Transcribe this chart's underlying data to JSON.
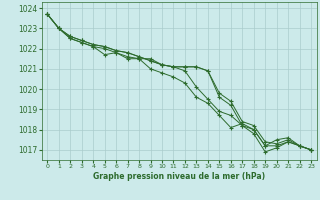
{
  "xlabel": "Graphe pression niveau de la mer (hPa)",
  "bg_color": "#cceaea",
  "grid_color": "#aacccc",
  "line_color": "#2d6b2d",
  "text_color": "#2d6b2d",
  "ylim": [
    1016.5,
    1024.3
  ],
  "xlim": [
    -0.5,
    23.5
  ],
  "yticks": [
    1017,
    1018,
    1019,
    1020,
    1021,
    1022,
    1023,
    1024
  ],
  "xticks": [
    0,
    1,
    2,
    3,
    4,
    5,
    6,
    7,
    8,
    9,
    10,
    11,
    12,
    13,
    14,
    15,
    16,
    17,
    18,
    19,
    20,
    21,
    22,
    23
  ],
  "series": [
    [
      1023.7,
      1023.0,
      1022.5,
      1022.3,
      1022.1,
      1021.7,
      1021.8,
      1021.6,
      1021.5,
      1021.5,
      1021.2,
      1021.1,
      1020.9,
      1020.1,
      1019.5,
      1018.9,
      1018.7,
      1018.2,
      1017.8,
      1016.9,
      1017.1,
      1017.4,
      1017.2,
      1017.0
    ],
    [
      1023.7,
      1023.0,
      1022.5,
      1022.3,
      1022.1,
      1022.0,
      1021.8,
      1021.5,
      1021.5,
      1021.0,
      1020.8,
      1020.6,
      1020.3,
      1019.6,
      1019.3,
      1018.7,
      1018.1,
      1018.3,
      1018.0,
      1017.2,
      1017.5,
      1017.6,
      1017.2,
      1017.0
    ],
    [
      1023.7,
      1023.0,
      1022.6,
      1022.4,
      1022.2,
      1022.1,
      1021.9,
      1021.8,
      1021.6,
      1021.4,
      1021.2,
      1021.1,
      1021.1,
      1021.1,
      1020.9,
      1019.6,
      1019.2,
      1018.2,
      1018.0,
      1017.2,
      1017.2,
      1017.4,
      1017.2,
      1017.0
    ],
    [
      1023.7,
      1023.0,
      1022.6,
      1022.4,
      1022.2,
      1022.1,
      1021.9,
      1021.8,
      1021.6,
      1021.4,
      1021.2,
      1021.1,
      1021.1,
      1021.1,
      1020.9,
      1019.8,
      1019.4,
      1018.4,
      1018.2,
      1017.4,
      1017.3,
      1017.5,
      1017.2,
      1017.0
    ]
  ]
}
